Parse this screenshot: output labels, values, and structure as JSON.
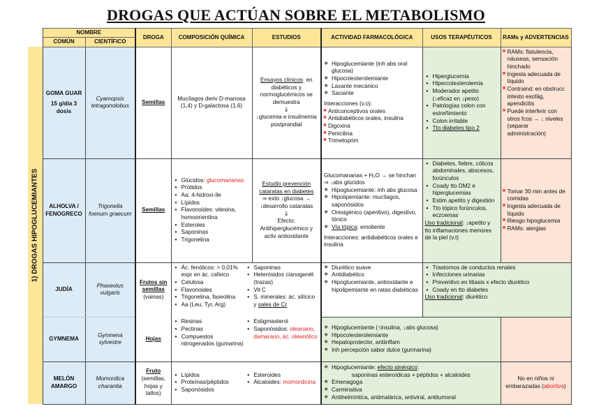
{
  "title": "DROGAS QUE ACTÚAN SOBRE EL METABOLISMO",
  "header": {
    "nombre": "NOMBRE",
    "comun": "COMÚN",
    "cientifico": "CIENTÍFICO",
    "droga": "DROGA",
    "composicion": "COMPOSICIÓN QUÍMICA",
    "estudios": "ESTUDIOS",
    "actividad": "ACTIVIDAD FARMACOLÓGICA",
    "usos": "USOS TERAPÉUTICOS",
    "rams": "RAMs y ADVERTENCIAS"
  },
  "section_label": "1) DROGAS HIPOGLUCEMIANTES",
  "colors": {
    "header": "#fde699",
    "name_bg": "#ddebf7",
    "usos_bg": "#e2efda",
    "rams_bg": "#fce4d6",
    "red": "#e02020"
  },
  "rows": [
    {
      "comun": {
        "blocks": [
          {
            "k": "p",
            "items": [
              [
                {
                  "t": "GOMA GUAR"
                }
              ],
              [
                {
                  "t": "15 g/día 3 dosis"
                }
              ]
            ]
          }
        ]
      },
      "cientifico": "Cyamopsis tetragonolobus",
      "droga": {
        "blocks": [
          {
            "k": "p",
            "items": [
              [
                {
                  "t": "Semillas",
                  "s": "u"
                }
              ]
            ]
          }
        ]
      },
      "composicion": {
        "blocks": [
          {
            "k": "pc",
            "items": [
              [
                {
                  "t": "Mucílagos deriv D-manosa (1,4) y D-galactosa (1,6)"
                }
              ]
            ]
          }
        ]
      },
      "estudios": {
        "blocks": [
          {
            "k": "pc",
            "items": [
              [
                {
                  "t": "Ensayos clínicos",
                  "s": "u"
                },
                {
                  "t": ": en diabéticos y normoglucémicos se demuestra"
                }
              ],
              [
                {
                  "t": "⇓"
                }
              ],
              [
                {
                  "t": "↓glucemia e insulinemia postprandial"
                }
              ]
            ]
          }
        ]
      },
      "actividad": {
        "blocks": [
          {
            "k": "dia",
            "items": [
              [
                {
                  "t": "Hipoglucemiante (inh abs oral glucosa)"
                }
              ],
              [
                {
                  "t": "Hipocolesterolemiante"
                }
              ],
              [
                {
                  "t": "Laxante mecánico"
                }
              ],
              [
                {
                  "t": "Saciante"
                }
              ]
            ]
          },
          {
            "k": "pg",
            "items": [
              [
                {
                  "t": "Interacciones ("
                },
                {
                  "t": "v.o",
                  "s": "i"
                },
                {
                  "t": "):"
                }
              ]
            ]
          },
          {
            "k": "x",
            "items": [
              [
                {
                  "t": "Anticonceptivos orales"
                }
              ],
              [
                {
                  "t": "Antidiabéticos orales, insulina"
                }
              ],
              [
                {
                  "t": "Digoxina"
                }
              ],
              [
                {
                  "t": "Penicilina"
                }
              ],
              [
                {
                  "t": "Trimetoprim"
                }
              ]
            ]
          }
        ]
      },
      "usos": {
        "blocks": [
          {
            "k": "ul",
            "items": [
              [
                {
                  "t": "Hiperglucemia"
                }
              ],
              [
                {
                  "t": "Hipercolesterolemia"
                }
              ],
              [
                {
                  "t": "Moderador apetito (↓eficaz en ↓peso)"
                }
              ],
              [
                {
                  "t": "Patologías colon con estreñimiento"
                }
              ],
              [
                {
                  "t": "Colon irritable"
                }
              ],
              [
                {
                  "t": "Tto diabetes tipo 2",
                  "s": "u"
                }
              ]
            ]
          }
        ]
      },
      "rams": {
        "blocks": [
          {
            "k": "x",
            "items": [
              [
                {
                  "t": "RAMs: flatulencia, náuseas, sensación hinchado"
                }
              ],
              [
                {
                  "t": "Ingesta adecuada de líquido"
                }
              ],
              [
                {
                  "t": "Contraind: en obstrucc intesto esofág, apendicitis"
                }
              ],
              [
                {
                  "t": "Puede interferir con otros fcos → ↓ niveles (separar administración)"
                }
              ]
            ]
          }
        ]
      }
    },
    {
      "comun": {
        "blocks": [
          {
            "k": "p",
            "items": [
              [
                {
                  "t": "ALHOLVA / FENOGRECO"
                }
              ]
            ]
          }
        ]
      },
      "cientifico": "Trigonella foenum graecum",
      "droga": {
        "blocks": [
          {
            "k": "p",
            "items": [
              [
                {
                  "t": "Semillas",
                  "s": "u"
                }
              ]
            ]
          }
        ]
      },
      "composicion": {
        "blocks": [
          {
            "k": "ul",
            "items": [
              [
                {
                  "t": "Glúcidos: "
                },
                {
                  "t": "glucomananas",
                  "s": "r"
                }
              ],
              [
                {
                  "t": "Prótidos"
                }
              ],
              [
                {
                  "t": "Aa: 4-hidroxi-Ile"
                }
              ],
              [
                {
                  "t": "Lípidos"
                }
              ],
              [
                {
                  "t": "Flavonoides: vitexina, homoorientina"
                }
              ],
              [
                {
                  "t": "Esteroles"
                }
              ],
              [
                {
                  "t": "Saponinas"
                }
              ],
              [
                {
                  "t": "Trigonelina"
                }
              ]
            ]
          }
        ]
      },
      "estudios": {
        "blocks": [
          {
            "k": "pc",
            "items": [
              [
                {
                  "t": "Estudio prevención cataratas en diabetes",
                  "s": "u"
                }
              ],
              [
                {
                  "t": "⇒ exto ↓glucosa → ↓desarrollo cataratas"
                }
              ],
              [
                {
                  "t": "⇓"
                }
              ],
              [
                {
                  "t": "Efecto: Antihiperglucémico y activ antioxidante"
                }
              ]
            ]
          }
        ]
      },
      "actividad": {
        "blocks": [
          {
            "k": "p",
            "items": [
              [
                {
                  "t": "Glucomananas + H₂O → se hinchan ⇒ ↓abs glúcidos"
                }
              ]
            ]
          },
          {
            "k": "dia",
            "items": [
              [
                {
                  "t": "Hipoglucemiante: inh abs glucosa"
                }
              ],
              [
                {
                  "t": "Hipolipemiante: mucílagos, saponósidos"
                }
              ],
              [
                {
                  "t": "Orexigénico (aperitivo), digestivo, tónico"
                }
              ],
              [
                {
                  "t": "Vía tópica",
                  "s": "u"
                },
                {
                  "t": ": emoliente"
                }
              ]
            ]
          },
          {
            "k": "pg",
            "items": [
              [
                {
                  "t": "Interacciones: antidiabéticos orales e insulina"
                }
              ]
            ]
          }
        ]
      },
      "usos": {
        "blocks": [
          {
            "k": "ul",
            "items": [
              [
                {
                  "t": "Diabetes, fiebre, cólicos abdominales, abscesos, forúnculos"
                }
              ],
              [
                {
                  "t": "Coady tto DM2 e hiperglucemias"
                }
              ],
              [
                {
                  "t": "Estim apetito y digestión"
                }
              ],
              [
                {
                  "t": "Tto tópico forúnculos, eczcemas"
                }
              ]
            ]
          },
          {
            "k": "p",
            "items": [
              [
                {
                  "t": "Uso tradicional",
                  "s": "u"
                },
                {
                  "t": ": ↓apetito y tto inflamaciones menores de la piel (v.t)"
                }
              ]
            ]
          }
        ]
      },
      "rams": {
        "blocks": [
          {
            "k": "x",
            "items": [
              [
                {
                  "t": "Tomar 30 min antes de comidas"
                }
              ],
              [
                {
                  "t": "Ingesta adecuada de líquido"
                }
              ],
              [
                {
                  "t": "Riesgo hipoglucemia"
                }
              ],
              [
                {
                  "t": "RAMs: alergias"
                }
              ]
            ]
          }
        ]
      }
    },
    {
      "comun": {
        "blocks": [
          {
            "k": "p",
            "items": [
              [
                {
                  "t": "JUDÍA"
                }
              ]
            ]
          }
        ]
      },
      "cientifico": "Phaseolus vulgaris",
      "droga": {
        "blocks": [
          {
            "k": "p",
            "items": [
              [
                {
                  "t": "Frutos sin semillas",
                  "s": "u"
                }
              ],
              [
                {
                  "t": "(vainas)",
                  "s": "n"
                }
              ]
            ]
          }
        ]
      },
      "composicion": {
        "cols": [
          [
            {
              "k": "ul",
              "items": [
                [
                  {
                    "t": "Ác. fenólicos: > 0,01% expr en ác. cafeico"
                  }
                ],
                [
                  {
                    "t": "Celulosa"
                  }
                ],
                [
                  {
                    "t": "Flavonoides"
                  }
                ],
                [
                  {
                    "t": "Trigonelina, faseolina"
                  }
                ],
                [
                  {
                    "t": "Aa (Leu, Tyr, Arg)"
                  }
                ]
              ]
            }
          ],
          [
            {
              "k": "ul",
              "items": [
                [
                  {
                    "t": "Saponinas"
                  }
                ],
                [
                  {
                    "t": "Heterósidos cianogenét (trazas)"
                  }
                ],
                [
                  {
                    "t": "Vit C"
                  }
                ],
                [
                  {
                    "t": "S. minerales: ác. silícico y "
                  },
                  {
                    "t": "sales de Cr",
                    "s": "u"
                  }
                ]
              ]
            }
          ]
        ]
      },
      "actividad": {
        "blocks": [
          {
            "k": "dia",
            "items": [
              [
                {
                  "t": "Diurético suave"
                }
              ],
              [
                {
                  "t": "Antidiabético"
                }
              ],
              [
                {
                  "t": "Hipoglucemiante, antioxidante e hipolipemiante en ratas diabéticas"
                }
              ]
            ]
          }
        ]
      },
      "usos": {
        "blocks": [
          {
            "k": "ul",
            "items": [
              [
                {
                  "t": "Trastornos de conductos renales"
                }
              ],
              [
                {
                  "t": "Infecciones urinarias"
                }
              ],
              [
                {
                  "t": "Preventivo en litiasis x efecto diurético"
                }
              ],
              [
                {
                  "t": "Coady en tto diabetes"
                }
              ]
            ]
          },
          {
            "k": "p",
            "items": [
              [
                {
                  "t": "Uso tradicional",
                  "s": "u"
                },
                {
                  "t": ": diurético"
                }
              ]
            ]
          }
        ]
      }
    },
    {
      "comun": {
        "blocks": [
          {
            "k": "p",
            "items": [
              [
                {
                  "t": "GYMNEMA"
                }
              ]
            ]
          }
        ]
      },
      "cientifico": "Gymnena sylvestre",
      "droga": {
        "blocks": [
          {
            "k": "p",
            "items": [
              [
                {
                  "t": "Hojas",
                  "s": "u"
                }
              ]
            ]
          }
        ]
      },
      "composicion": {
        "cols": [
          [
            {
              "k": "ul",
              "items": [
                [
                  {
                    "t": "Resinas"
                  }
                ],
                [
                  {
                    "t": "Pectinas"
                  }
                ],
                [
                  {
                    "t": "Compuestos nitrogenados (gumarina)"
                  }
                ]
              ]
            }
          ],
          [
            {
              "k": "ul",
              "items": [
                [
                  {
                    "t": "Estigmasterol"
                  }
                ],
                [
                  {
                    "t": "Saponósidos: "
                  },
                  {
                    "t": "oleanano",
                    "s": "r"
                  },
                  {
                    "t": ", "
                  },
                  {
                    "t": "damarano, ác. oleanólico",
                    "s": "r"
                  }
                ]
              ]
            }
          ]
        ]
      },
      "actividad": {
        "blocks": [
          {
            "k": "dia",
            "items": [
              [
                {
                  "t": "Hipoglucemiante (↑insulina, ↓abs glucosa)"
                }
              ],
              [
                {
                  "t": "Hipocolesterolemiante"
                }
              ],
              [
                {
                  "t": "Hepatoprotector, antiinflam"
                }
              ],
              [
                {
                  "t": "Inh percepción sabor dulce (gurmarina)"
                }
              ]
            ]
          }
        ]
      }
    },
    {
      "comun": {
        "blocks": [
          {
            "k": "p",
            "items": [
              [
                {
                  "t": "MELÓN AMARGO"
                }
              ]
            ]
          }
        ]
      },
      "cientifico": "Momordica charantia",
      "droga": {
        "blocks": [
          {
            "k": "p",
            "items": [
              [
                {
                  "t": "Fruto",
                  "s": "u"
                }
              ],
              [
                {
                  "t": "(semillas, hojas y tallos)",
                  "s": "n"
                }
              ]
            ]
          }
        ]
      },
      "composicion": {
        "cols": [
          [
            {
              "k": "ul",
              "items": [
                [
                  {
                    "t": "Lípidos"
                  }
                ],
                [
                  {
                    "t": "Proteínas/péptidos"
                  }
                ],
                [
                  {
                    "t": "Saponósidos"
                  }
                ]
              ]
            }
          ],
          [
            {
              "k": "ul",
              "items": [
                [
                  {
                    "t": "Esteroides"
                  }
                ],
                [
                  {
                    "t": "Alcaloides: "
                  },
                  {
                    "t": "momordicina",
                    "s": "r"
                  }
                ]
              ]
            }
          ]
        ]
      },
      "actividad": {
        "blocks": [
          {
            "k": "dia",
            "items": [
              [
                {
                  "t": "Hipoglucemiante: "
                },
                {
                  "t": "efecto sinérgico",
                  "s": "u"
                },
                {
                  "t": ":"
                }
              ]
            ]
          },
          {
            "k": "pc",
            "items": [
              [
                {
                  "t": "saponinas esteroídicas + péptidos + alcaloides"
                }
              ]
            ]
          },
          {
            "k": "dia",
            "items": [
              [
                {
                  "t": "Emenagoga"
                }
              ],
              [
                {
                  "t": "Carminativa"
                }
              ],
              [
                {
                  "t": "Antihelmíntica, antimalárica, antiviral, antitumoral"
                }
              ]
            ]
          }
        ]
      },
      "rams": {
        "blocks": [
          {
            "k": "pc",
            "items": [
              [
                {
                  "t": "No en niños ni embarazadas ("
                },
                {
                  "t": "abortiva",
                  "s": "r"
                },
                {
                  "t": ")"
                }
              ]
            ]
          }
        ]
      }
    }
  ]
}
